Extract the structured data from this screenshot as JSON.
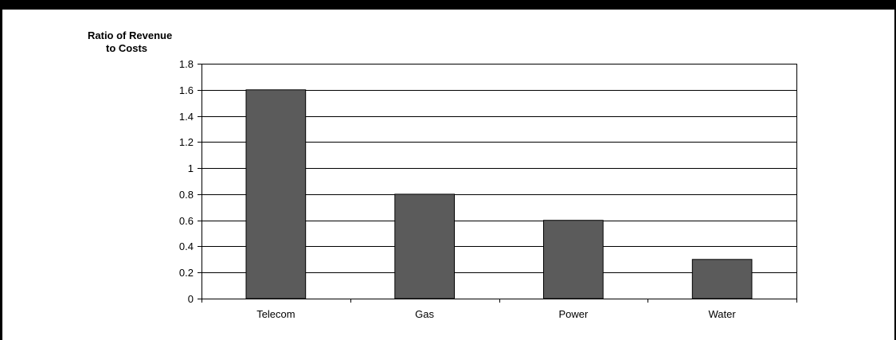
{
  "chart_data": {
    "type": "bar",
    "title": "",
    "ylabel_lines": [
      "Ratio of Revenue",
      "to Costs"
    ],
    "xlabel": "",
    "categories": [
      "Telecom",
      "Gas",
      "Power",
      "Water"
    ],
    "values": [
      1.6,
      0.8,
      0.6,
      0.3
    ],
    "yticks": [
      "0",
      "0.2",
      "0.4",
      "0.6",
      "0.8",
      "1",
      "1.2",
      "1.4",
      "1.6",
      "1.8"
    ],
    "ylim": [
      0,
      1.8
    ],
    "ystep": 0.2,
    "grid": true,
    "legend": "none",
    "colors": {
      "bar": "#5b5b5b",
      "bar_edge": "#000000",
      "grid": "#000000",
      "frame": "#000000"
    }
  }
}
